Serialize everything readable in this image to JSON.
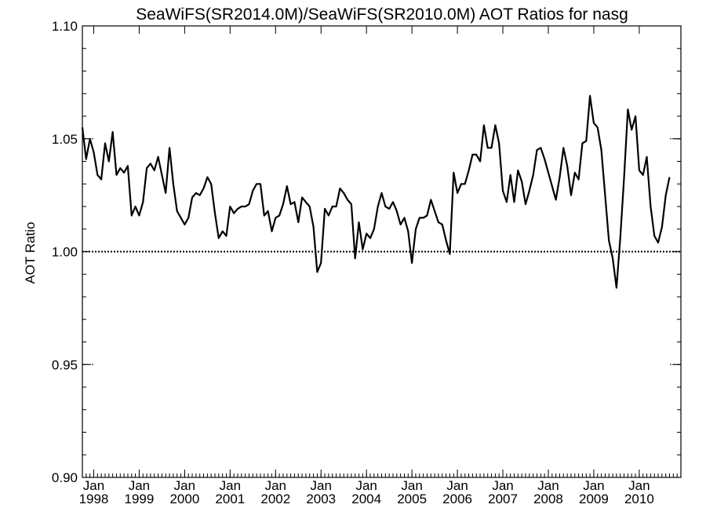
{
  "chart_data": {
    "type": "line",
    "title": "SeaWiFS(SR2014.0M)/SeaWiFS(SR2010.0M)  AOT Ratios for nasg",
    "xlabel": "",
    "ylabel": "AOT Ratio",
    "ylim": [
      0.9,
      1.1
    ],
    "xlim": [
      "1997-10",
      "2010-12"
    ],
    "yticks": [
      "0.90",
      "0.95",
      "1.00",
      "1.05",
      "1.10"
    ],
    "xticks": [
      {
        "month": "Jan",
        "year": "1998",
        "date": "1998-01"
      },
      {
        "month": "Jan",
        "year": "1999",
        "date": "1999-01"
      },
      {
        "month": "Jan",
        "year": "2000",
        "date": "2000-01"
      },
      {
        "month": "Jan",
        "year": "2001",
        "date": "2001-01"
      },
      {
        "month": "Jan",
        "year": "2002",
        "date": "2002-01"
      },
      {
        "month": "Jan",
        "year": "2003",
        "date": "2003-01"
      },
      {
        "month": "Jan",
        "year": "2004",
        "date": "2004-01"
      },
      {
        "month": "Jan",
        "year": "2005",
        "date": "2005-01"
      },
      {
        "month": "Jan",
        "year": "2006",
        "date": "2006-01"
      },
      {
        "month": "Jan",
        "year": "2007",
        "date": "2007-01"
      },
      {
        "month": "Jan",
        "year": "2008",
        "date": "2008-01"
      },
      {
        "month": "Jan",
        "year": "2009",
        "date": "2009-01"
      },
      {
        "month": "Jan",
        "year": "2010",
        "date": "2010-01"
      }
    ],
    "reference_line": {
      "y": 1.0,
      "style": "dotted"
    },
    "dashed_reference_lines": [
      0.95,
      1.05
    ],
    "grid": false,
    "series": [
      {
        "color": "#000000",
        "points": [
          [
            "1997-10",
            1.055
          ],
          [
            "1997-11",
            1.041
          ],
          [
            "1997-12",
            1.05
          ],
          [
            "1998-01",
            1.044
          ],
          [
            "1998-02",
            1.034
          ],
          [
            "1998-03",
            1.032
          ],
          [
            "1998-04",
            1.048
          ],
          [
            "1998-05",
            1.04
          ],
          [
            "1998-06",
            1.053
          ],
          [
            "1998-07",
            1.034
          ],
          [
            "1998-08",
            1.037
          ],
          [
            "1998-09",
            1.035
          ],
          [
            "1998-10",
            1.038
          ],
          [
            "1998-11",
            1.016
          ],
          [
            "1998-12",
            1.02
          ],
          [
            "1999-01",
            1.016
          ],
          [
            "1999-02",
            1.022
          ],
          [
            "1999-03",
            1.037
          ],
          [
            "1999-04",
            1.039
          ],
          [
            "1999-05",
            1.036
          ],
          [
            "1999-06",
            1.042
          ],
          [
            "1999-07",
            1.034
          ],
          [
            "1999-08",
            1.026
          ],
          [
            "1999-09",
            1.046
          ],
          [
            "1999-10",
            1.03
          ],
          [
            "1999-11",
            1.018
          ],
          [
            "1999-12",
            1.015
          ],
          [
            "2000-01",
            1.012
          ],
          [
            "2000-02",
            1.015
          ],
          [
            "2000-03",
            1.024
          ],
          [
            "2000-04",
            1.026
          ],
          [
            "2000-05",
            1.025
          ],
          [
            "2000-06",
            1.028
          ],
          [
            "2000-07",
            1.033
          ],
          [
            "2000-08",
            1.03
          ],
          [
            "2000-09",
            1.017
          ],
          [
            "2000-10",
            1.006
          ],
          [
            "2000-11",
            1.009
          ],
          [
            "2000-12",
            1.007
          ],
          [
            "2001-01",
            1.02
          ],
          [
            "2001-02",
            1.017
          ],
          [
            "2001-03",
            1.019
          ],
          [
            "2001-04",
            1.02
          ],
          [
            "2001-05",
            1.02
          ],
          [
            "2001-06",
            1.021
          ],
          [
            "2001-07",
            1.027
          ],
          [
            "2001-08",
            1.03
          ],
          [
            "2001-09",
            1.03
          ],
          [
            "2001-10",
            1.016
          ],
          [
            "2001-11",
            1.018
          ],
          [
            "2001-12",
            1.009
          ],
          [
            "2002-01",
            1.015
          ],
          [
            "2002-02",
            1.016
          ],
          [
            "2002-03",
            1.021
          ],
          [
            "2002-04",
            1.029
          ],
          [
            "2002-05",
            1.021
          ],
          [
            "2002-06",
            1.022
          ],
          [
            "2002-07",
            1.013
          ],
          [
            "2002-08",
            1.024
          ],
          [
            "2002-09",
            1.022
          ],
          [
            "2002-10",
            1.02
          ],
          [
            "2002-11",
            1.011
          ],
          [
            "2002-12",
            0.991
          ],
          [
            "2003-01",
            0.995
          ],
          [
            "2003-02",
            1.019
          ],
          [
            "2003-03",
            1.016
          ],
          [
            "2003-04",
            1.02
          ],
          [
            "2003-05",
            1.02
          ],
          [
            "2003-06",
            1.028
          ],
          [
            "2003-07",
            1.026
          ],
          [
            "2003-08",
            1.023
          ],
          [
            "2003-09",
            1.021
          ],
          [
            "2003-10",
            0.997
          ],
          [
            "2003-11",
            1.013
          ],
          [
            "2003-12",
            1.001
          ],
          [
            "2004-01",
            1.008
          ],
          [
            "2004-02",
            1.006
          ],
          [
            "2004-03",
            1.01
          ],
          [
            "2004-04",
            1.02
          ],
          [
            "2004-05",
            1.026
          ],
          [
            "2004-06",
            1.02
          ],
          [
            "2004-07",
            1.019
          ],
          [
            "2004-08",
            1.022
          ],
          [
            "2004-09",
            1.018
          ],
          [
            "2004-10",
            1.012
          ],
          [
            "2004-11",
            1.015
          ],
          [
            "2004-12",
            1.009
          ],
          [
            "2005-01",
            0.995
          ],
          [
            "2005-02",
            1.01
          ],
          [
            "2005-03",
            1.015
          ],
          [
            "2005-04",
            1.015
          ],
          [
            "2005-05",
            1.016
          ],
          [
            "2005-06",
            1.023
          ],
          [
            "2005-07",
            1.018
          ],
          [
            "2005-08",
            1.013
          ],
          [
            "2005-09",
            1.012
          ],
          [
            "2005-10",
            1.005
          ],
          [
            "2005-11",
            0.999
          ],
          [
            "2005-12",
            1.035
          ],
          [
            "2006-01",
            1.026
          ],
          [
            "2006-02",
            1.03
          ],
          [
            "2006-03",
            1.03
          ],
          [
            "2006-04",
            1.036
          ],
          [
            "2006-05",
            1.043
          ],
          [
            "2006-06",
            1.043
          ],
          [
            "2006-07",
            1.04
          ],
          [
            "2006-08",
            1.056
          ],
          [
            "2006-09",
            1.046
          ],
          [
            "2006-10",
            1.046
          ],
          [
            "2006-11",
            1.056
          ],
          [
            "2006-12",
            1.048
          ],
          [
            "2007-01",
            1.027
          ],
          [
            "2007-02",
            1.022
          ],
          [
            "2007-03",
            1.034
          ],
          [
            "2007-04",
            1.022
          ],
          [
            "2007-05",
            1.036
          ],
          [
            "2007-06",
            1.031
          ],
          [
            "2007-07",
            1.021
          ],
          [
            "2007-08",
            1.027
          ],
          [
            "2007-09",
            1.034
          ],
          [
            "2007-10",
            1.045
          ],
          [
            "2007-11",
            1.046
          ],
          [
            "2007-12",
            1.041
          ],
          [
            "2008-03",
            1.023
          ],
          [
            "2008-04",
            1.033
          ],
          [
            "2008-05",
            1.046
          ],
          [
            "2008-06",
            1.038
          ],
          [
            "2008-07",
            1.025
          ],
          [
            "2008-08",
            1.035
          ],
          [
            "2008-09",
            1.032
          ],
          [
            "2008-10",
            1.048
          ],
          [
            "2008-11",
            1.049
          ],
          [
            "2008-12",
            1.069
          ],
          [
            "2009-01",
            1.057
          ],
          [
            "2009-02",
            1.055
          ],
          [
            "2009-03",
            1.045
          ],
          [
            "2009-05",
            1.005
          ],
          [
            "2009-06",
            0.997
          ],
          [
            "2009-07",
            0.984
          ],
          [
            "2009-08",
            1.006
          ],
          [
            "2009-09",
            1.033
          ],
          [
            "2009-10",
            1.063
          ],
          [
            "2009-11",
            1.054
          ],
          [
            "2009-12",
            1.06
          ],
          [
            "2010-01",
            1.036
          ],
          [
            "2010-02",
            1.034
          ],
          [
            "2010-03",
            1.042
          ],
          [
            "2010-04",
            1.02
          ],
          [
            "2010-05",
            1.007
          ],
          [
            "2010-06",
            1.004
          ],
          [
            "2010-07",
            1.011
          ],
          [
            "2010-08",
            1.025
          ],
          [
            "2010-09",
            1.033
          ]
        ]
      }
    ]
  }
}
